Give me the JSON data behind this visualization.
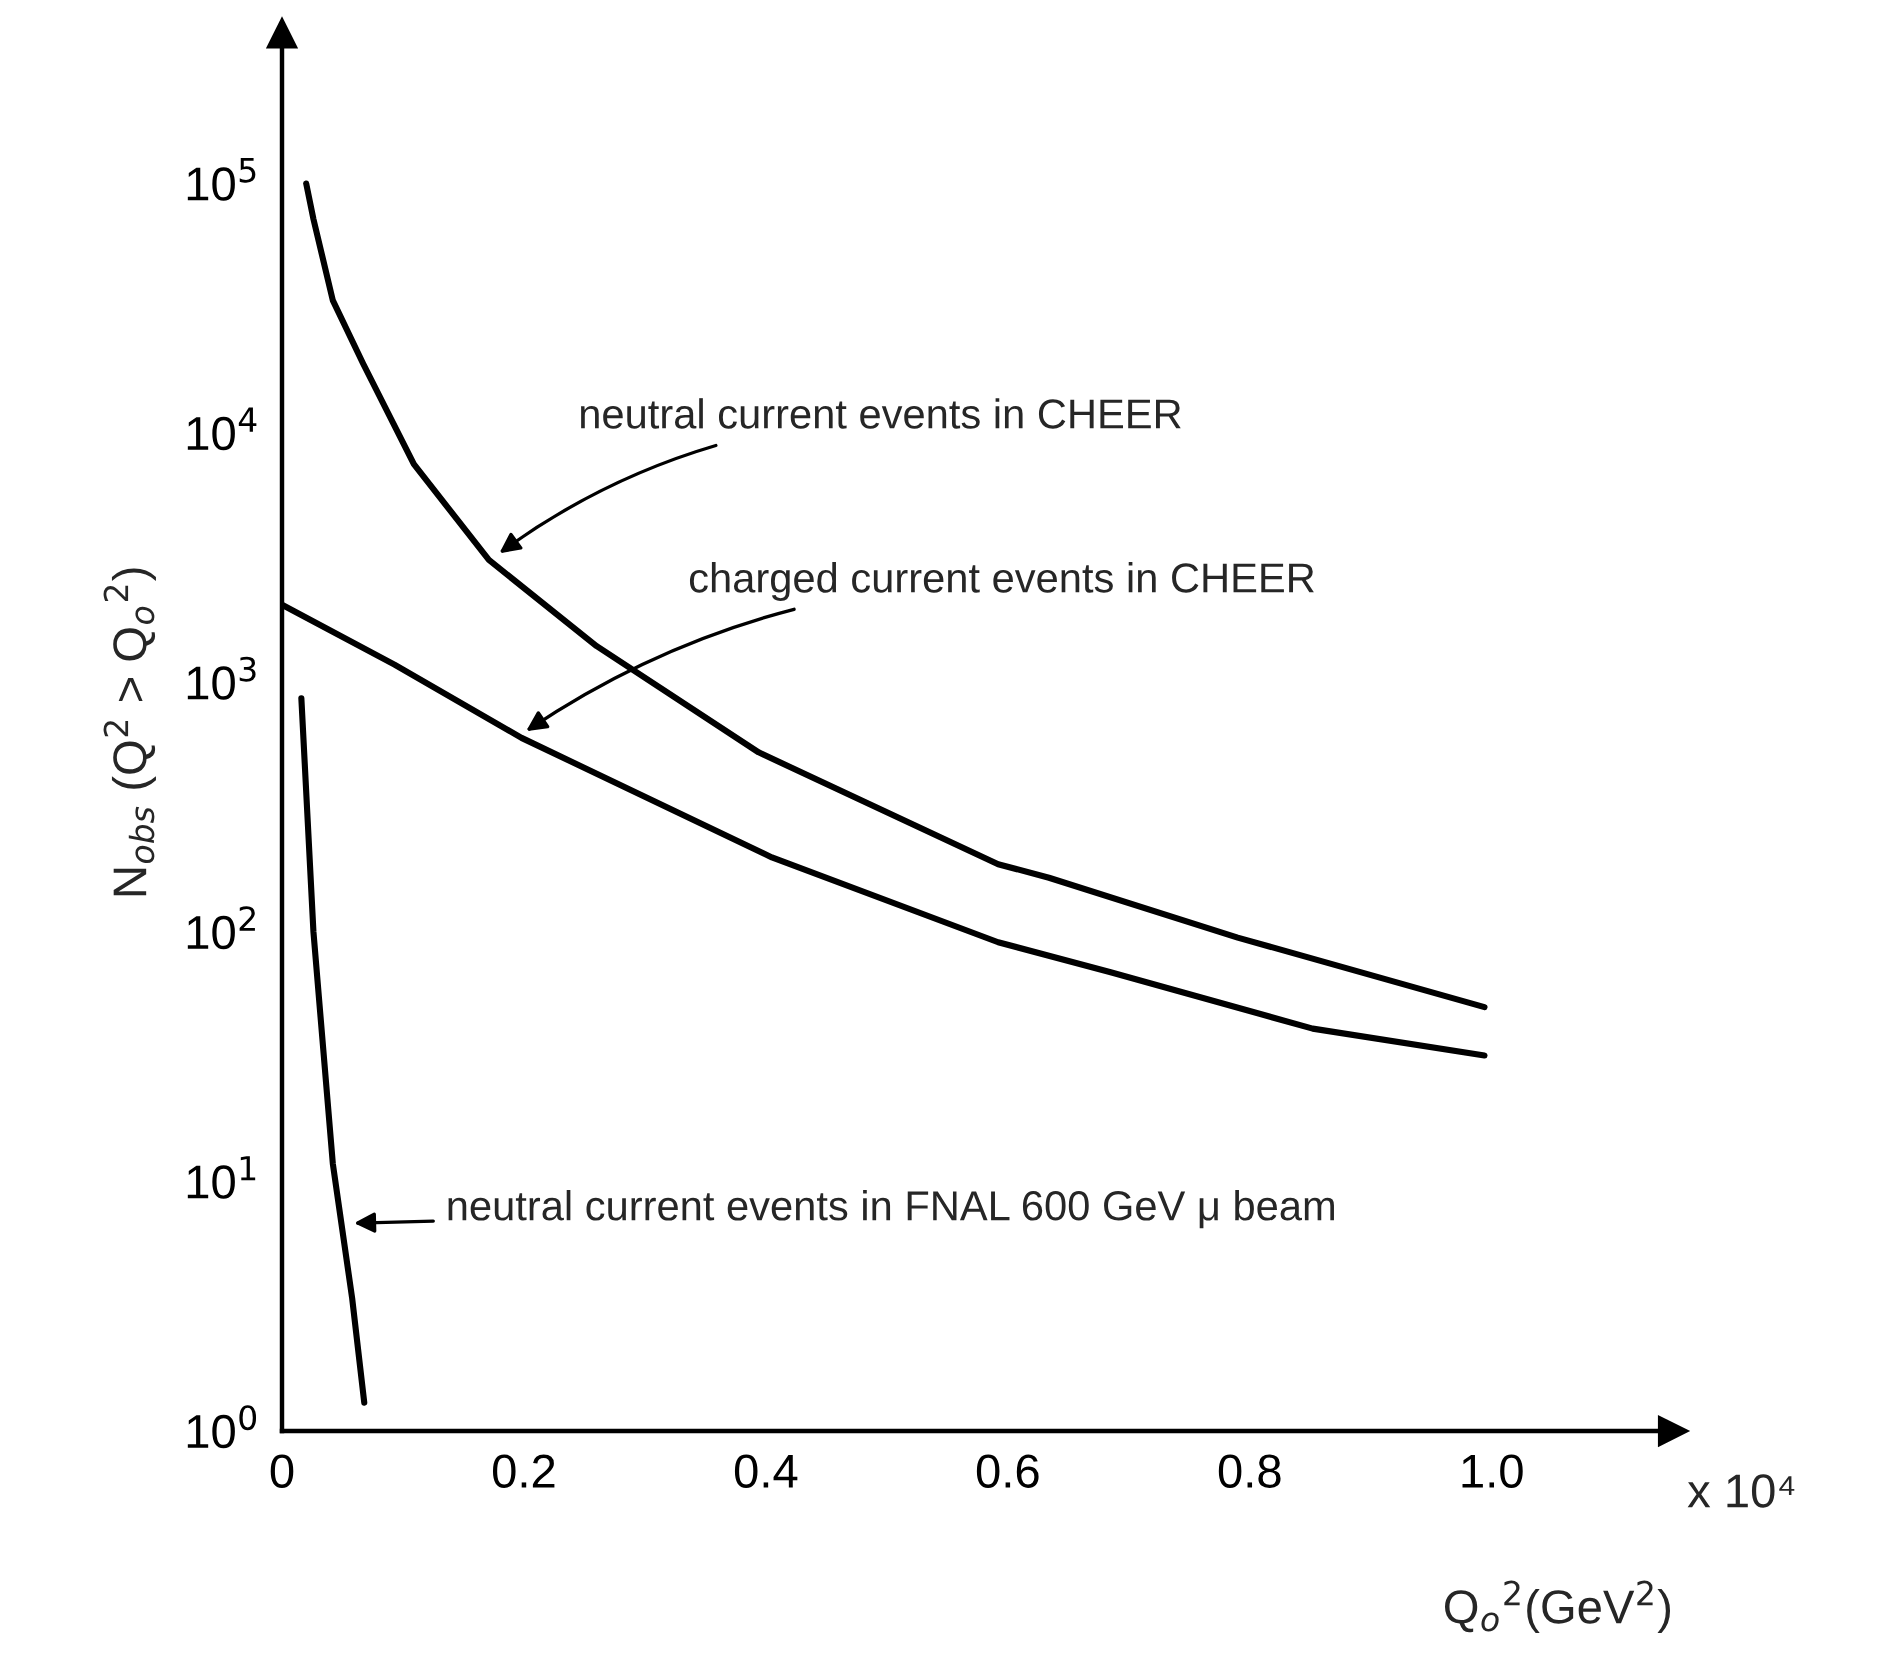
{
  "chart_data": {
    "type": "line",
    "xlabel": "Q$_{o}$$^{2}$(GeV$^{2}$)",
    "ylabel": "N$_{obs}$ (Q$^{2}$ > Q$_{o}$$^{2}$)",
    "log": "y",
    "grid": false,
    "legend": false,
    "marker": "none",
    "line_style": "solid",
    "xlim": [
      0,
      1.15
    ],
    "ylim": [
      1,
      400000
    ],
    "xticks": [
      0,
      0.2,
      0.4,
      0.6,
      0.8,
      {
        "value": 1.0,
        "label": "1.0"
      }
    ],
    "yticks": [
      {
        "value": 1,
        "label": "10$^{0}$"
      },
      {
        "value": 10,
        "label": "10$^{1}$"
      },
      {
        "value": 100,
        "label": "10$^{2}$"
      },
      {
        "value": 1000,
        "label": "10$^{3}$"
      },
      {
        "value": 10000,
        "label": "10$^{4}$"
      },
      {
        "value": 100000,
        "label": "10$^{5}$"
      }
    ],
    "series": [
      {
        "color": "#000000",
        "x": [
          0.02,
          0.026,
          0.042,
          0.067,
          0.109,
          0.171,
          0.26,
          0.394,
          0.592,
          0.634,
          0.79,
          0.994
        ],
        "values": [
          100000,
          72000,
          34000,
          19000,
          7500,
          3100,
          1400,
          525,
          187,
          165,
          95,
          50
        ]
      },
      {
        "color": "#000000",
        "x": [
          0,
          0.093,
          0.198,
          0.405,
          0.592,
          0.685,
          0.852,
          0.994
        ],
        "values": [
          2050,
          1180,
          600,
          199,
          91,
          69,
          41,
          32
        ]
      },
      {
        "color": "#000000",
        "x": [
          0.016,
          0.026,
          0.042,
          0.058,
          0.068
        ],
        "values": [
          865,
          100,
          11.8,
          3.4,
          1.3
        ]
      }
    ],
    "annotations": [
      {
        "text": "neutral current events in CHEER",
        "x": 0.176,
        "y": 3200
      },
      {
        "text": "charged current events in CHEER",
        "x": 0.198,
        "y": 620
      },
      {
        "text": "neutral current events in FNAL 600 GeV μ beam",
        "x": 0.055,
        "y": 6.8
      },
      "x 10⁴"
    ]
  }
}
